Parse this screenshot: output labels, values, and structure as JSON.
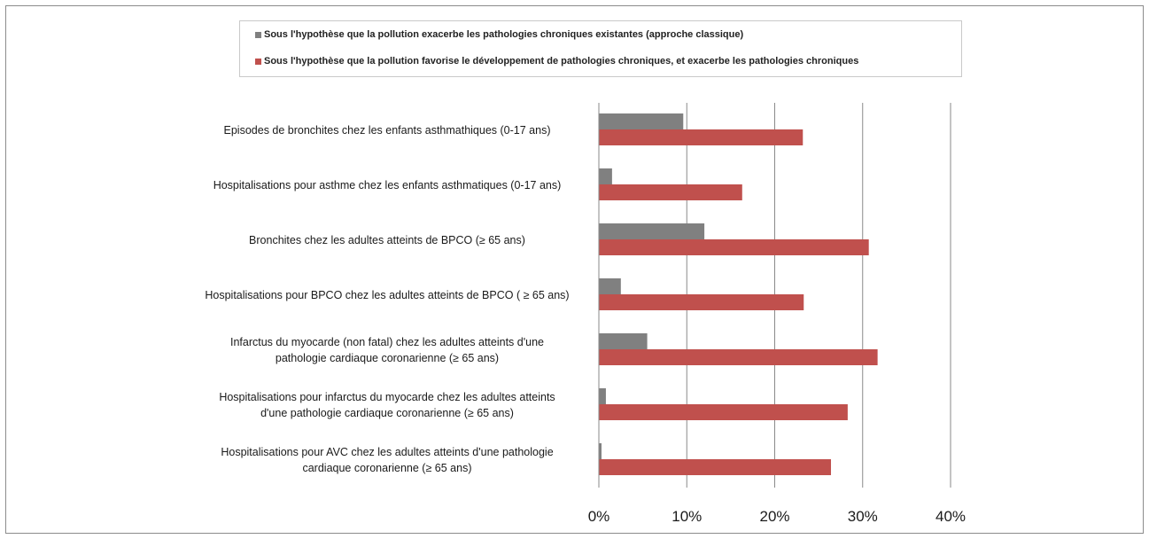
{
  "chart_data": {
    "type": "bar",
    "orientation": "horizontal",
    "categories": [
      [
        "Episodes de bronchites chez les enfants asthmathiques (0-17 ans)"
      ],
      [
        "Hospitalisations pour asthme chez les enfants asthmatiques  (0-17 ans)"
      ],
      [
        "Bronchites chez les adultes atteints de BPCO (≥ 65 ans)"
      ],
      [
        "Hospitalisations pour BPCO chez les adultes atteints de BPCO ( ≥ 65 ans)"
      ],
      [
        "Infarctus du myocarde (non fatal) chez les adultes atteints d'une",
        "pathologie cardiaque coronarienne (≥ 65 ans)"
      ],
      [
        "Hospitalisations pour infarctus du myocarde chez les adultes atteints",
        "d'une pathologie cardiaque coronarienne (≥ 65 ans)"
      ],
      [
        "Hospitalisations pour AVC chez les adultes atteints d'une pathologie",
        "cardiaque coronarienne (≥ 65 ans)"
      ]
    ],
    "series": [
      {
        "name": "Sous l'hypothèse que la pollution exacerbe les pathologies chroniques existantes (approche classique)",
        "color": "#808080",
        "values": [
          9.6,
          1.5,
          12.0,
          2.5,
          5.5,
          0.8,
          0.3
        ]
      },
      {
        "name": "Sous l'hypothèse que la pollution favorise le développement de pathologies chroniques, et exacerbe les pathologies chroniques",
        "color": "#c0504d",
        "values": [
          23.2,
          16.3,
          30.7,
          23.3,
          31.7,
          28.3,
          26.4
        ]
      }
    ],
    "x_ticks": [
      "0%",
      "10%",
      "20%",
      "30%",
      "40%"
    ],
    "xlim": [
      0,
      40
    ],
    "grid": true,
    "legend_position": "top"
  }
}
